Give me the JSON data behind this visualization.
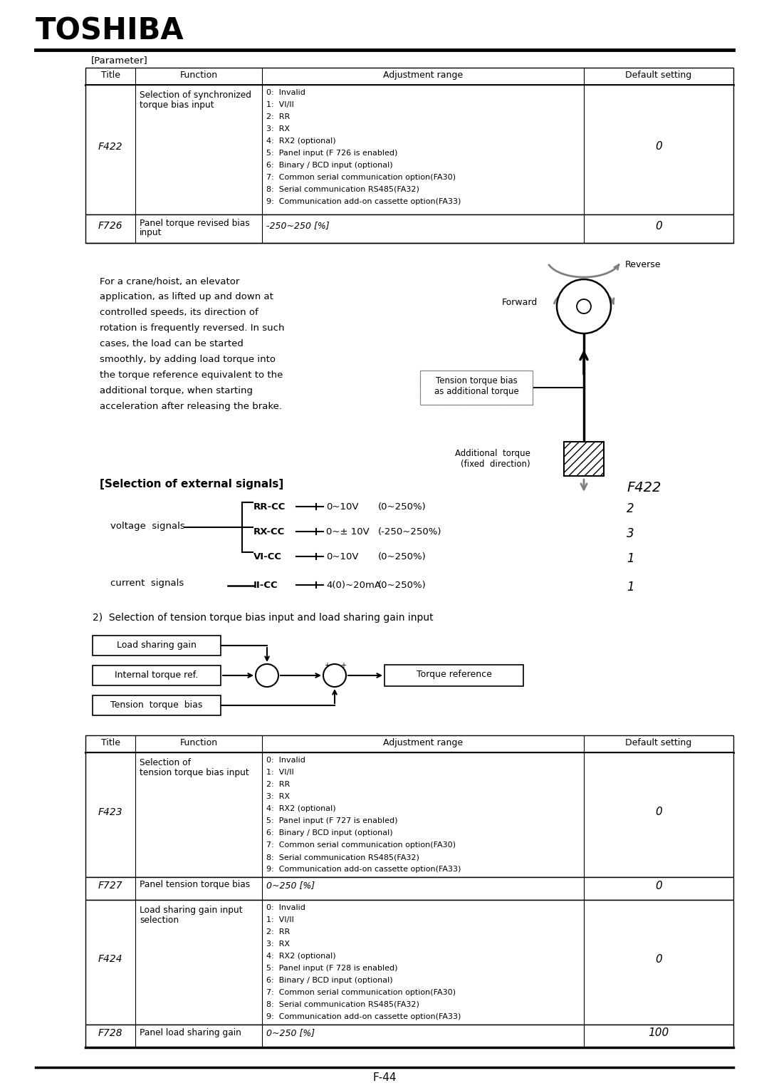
{
  "bg_color": "#ffffff",
  "page_num": "F-44",
  "toshiba_text": "TOSHIBA",
  "param_label": "[Parameter]",
  "table1_headers": [
    "Title",
    "Function",
    "Adjustment range",
    "Default setting"
  ],
  "f422_adj": [
    "0:  Invalid",
    "1:  VI/II",
    "2:  RR",
    "3:  RX",
    "4:  RX2 (optional)",
    "5:  Panel input (F 726 is enabled)",
    "6:  Binary / BCD input (optional)",
    "7:  Common serial communication option(FA30)",
    "8:  Serial communication RS485(FA32)",
    "9:  Communication add-on cassette option(FA33)"
  ],
  "f423_adj": [
    "0:  Invalid",
    "1:  VI/II",
    "2:  RR",
    "3:  RX",
    "4:  RX2 (optional)",
    "5:  Panel input (F 727 is enabled)",
    "6:  Binary / BCD input (optional)",
    "7:  Common serial communication option(FA30)",
    "8:  Serial communication RS485(FA32)",
    "9:  Communication add-on cassette option(FA33)"
  ],
  "f424_adj": [
    "0:  Invalid",
    "1:  VI/II",
    "2:  RR",
    "3:  RX",
    "4:  RX2 (optional)",
    "5:  Panel input (F 728 is enabled)",
    "6:  Binary / BCD input (optional)",
    "7:  Common serial communication option(FA30)",
    "8:  Serial communication RS485(FA32)",
    "9:  Communication add-on cassette option(FA33)"
  ],
  "desc_text_lines": [
    "For a crane/hoist, an elevator",
    "application, as lifted up and down at",
    "controlled speeds, its direction of",
    "rotation is frequently reversed. In such",
    "cases, the load can be started",
    "smoothly, by adding load torque into",
    "the torque reference equivalent to the",
    "additional torque, when starting",
    "acceleration after releasing the brake."
  ]
}
